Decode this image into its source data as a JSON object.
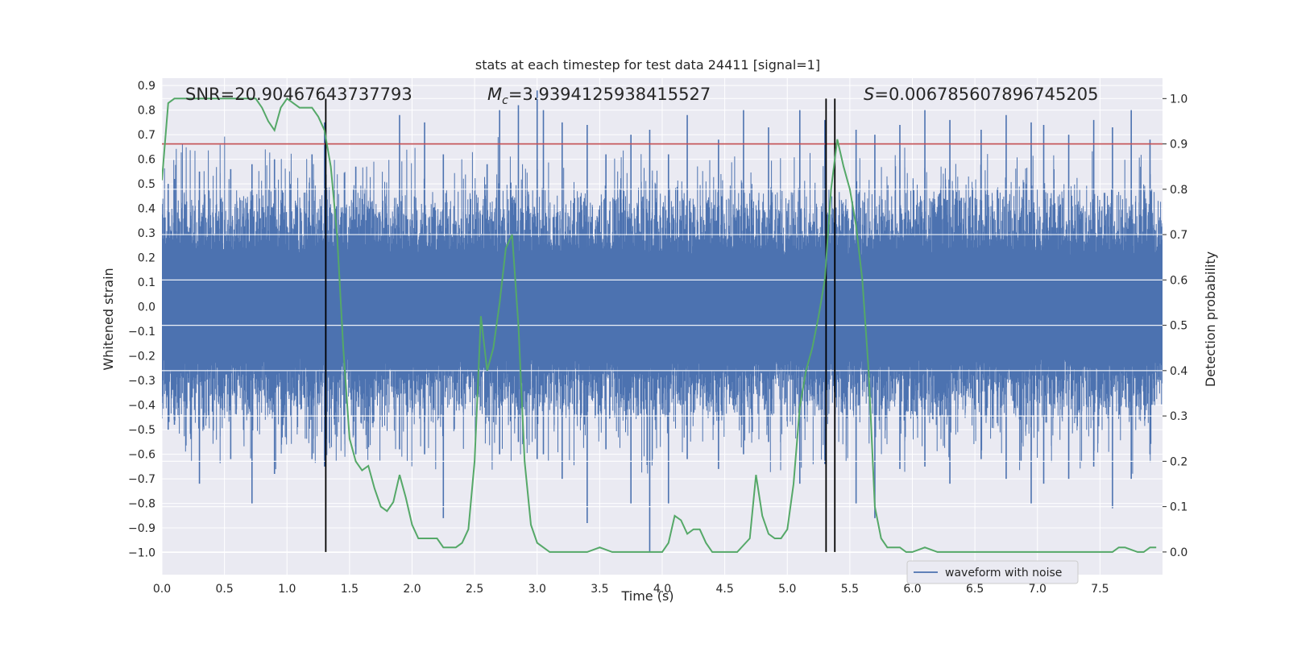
{
  "chart_data": {
    "type": "line",
    "title": "stats at each timestep for test data 24411 [signal=1]",
    "xlabel": "Time (s)",
    "ylabel_left": "Whitened strain",
    "ylabel_right": "Detection probability",
    "xlim": [
      0.0,
      8.0
    ],
    "ylim_left": [
      -1.09,
      0.93
    ],
    "ylim_right": [
      -0.05,
      1.045
    ],
    "x_ticks": [
      "0.0",
      "0.5",
      "1.0",
      "1.5",
      "2.0",
      "2.5",
      "3.0",
      "3.5",
      "4.0",
      "4.5",
      "5.0",
      "5.5",
      "6.0",
      "6.5",
      "7.0",
      "7.5"
    ],
    "y_ticks_left": [
      "0.9",
      "0.8",
      "0.7",
      "0.6",
      "0.5",
      "0.4",
      "0.3",
      "0.2",
      "0.1",
      "0.0",
      "−0.1",
      "−0.2",
      "−0.3",
      "−0.4",
      "−0.5",
      "−0.6",
      "−0.7",
      "−0.8",
      "−0.9",
      "−1.0"
    ],
    "y_ticks_right": [
      "1.0",
      "0.9",
      "0.8",
      "0.7",
      "0.6",
      "0.5",
      "0.4",
      "0.3",
      "0.2",
      "0.1",
      "0.0"
    ],
    "grid": true,
    "legend_position": "bottom-right",
    "annotations": {
      "snr": "SNR=20.90467643737793",
      "mc_symbol": "M",
      "mc_sub": "c",
      "mc_value": "=3.9394125938415527",
      "s_symbol": "S",
      "s_value": "=0.006785607896745205"
    },
    "series": [
      {
        "name": "waveform with noise",
        "axis": "left",
        "color": "#4c72b0",
        "description_only": false,
        "noise_band": 0.28,
        "spikes": [
          [
            0.05,
            0.5,
            -0.5
          ],
          [
            0.1,
            0.52,
            -0.48
          ],
          [
            0.3,
            0.55,
            -0.72
          ],
          [
            0.55,
            0.56,
            -0.62
          ],
          [
            0.72,
            0.58,
            -0.8
          ],
          [
            0.9,
            0.6,
            -0.68
          ],
          [
            1.2,
            0.62,
            -0.62
          ],
          [
            1.3,
            0.75,
            -0.65
          ],
          [
            1.55,
            0.57,
            -0.6
          ],
          [
            1.9,
            0.78,
            -0.58
          ],
          [
            2.1,
            0.75,
            -0.6
          ],
          [
            2.25,
            0.62,
            -0.86
          ],
          [
            2.6,
            0.58,
            -0.45
          ],
          [
            2.7,
            0.8,
            -0.6
          ],
          [
            2.85,
            0.82,
            -0.55
          ],
          [
            3.0,
            0.88,
            -0.62
          ],
          [
            3.05,
            0.8,
            -0.6
          ],
          [
            3.2,
            0.75,
            -0.7
          ],
          [
            3.4,
            0.74,
            -0.88
          ],
          [
            3.55,
            0.62,
            -0.58
          ],
          [
            3.75,
            0.7,
            -0.8
          ],
          [
            3.9,
            0.72,
            -1.0
          ],
          [
            4.05,
            0.62,
            -0.8
          ],
          [
            4.2,
            0.78,
            -0.62
          ],
          [
            4.45,
            0.68,
            -0.66
          ],
          [
            4.65,
            0.8,
            -0.6
          ],
          [
            4.85,
            0.73,
            -0.55
          ],
          [
            5.1,
            0.8,
            -0.72
          ],
          [
            5.3,
            0.76,
            -0.64
          ],
          [
            5.55,
            0.72,
            -0.8
          ],
          [
            5.7,
            0.7,
            -0.86
          ],
          [
            5.9,
            0.74,
            -0.66
          ],
          [
            6.1,
            0.8,
            -0.65
          ],
          [
            6.3,
            0.76,
            -0.72
          ],
          [
            6.55,
            0.72,
            -0.62
          ],
          [
            6.75,
            0.78,
            -0.7
          ],
          [
            6.95,
            0.75,
            -0.8
          ],
          [
            7.05,
            0.74,
            -0.72
          ],
          [
            7.25,
            0.7,
            -0.7
          ],
          [
            7.45,
            0.76,
            -0.65
          ],
          [
            7.6,
            0.73,
            -0.82
          ],
          [
            7.75,
            0.8,
            -0.7
          ],
          [
            7.9,
            0.68,
            -0.6
          ]
        ]
      },
      {
        "name": "",
        "axis": "right",
        "color": "#55a868",
        "x": [
          0.0,
          0.05,
          0.1,
          0.15,
          0.2,
          0.3,
          0.4,
          0.5,
          0.6,
          0.7,
          0.75,
          0.8,
          0.85,
          0.9,
          0.95,
          1.0,
          1.05,
          1.1,
          1.2,
          1.25,
          1.3,
          1.35,
          1.4,
          1.45,
          1.5,
          1.55,
          1.6,
          1.65,
          1.7,
          1.75,
          1.8,
          1.85,
          1.9,
          1.95,
          2.0,
          2.05,
          2.1,
          2.15,
          2.2,
          2.25,
          2.3,
          2.35,
          2.4,
          2.45,
          2.5,
          2.55,
          2.6,
          2.65,
          2.7,
          2.75,
          2.8,
          2.85,
          2.9,
          2.95,
          3.0,
          3.1,
          3.2,
          3.3,
          3.4,
          3.5,
          3.6,
          3.7,
          3.8,
          3.9,
          4.0,
          4.05,
          4.1,
          4.15,
          4.2,
          4.25,
          4.3,
          4.35,
          4.4,
          4.45,
          4.5,
          4.6,
          4.7,
          4.75,
          4.8,
          4.85,
          4.9,
          4.95,
          5.0,
          5.05,
          5.1,
          5.15,
          5.2,
          5.25,
          5.3,
          5.35,
          5.4,
          5.45,
          5.5,
          5.55,
          5.6,
          5.65,
          5.7,
          5.75,
          5.8,
          5.85,
          5.9,
          5.95,
          6.0,
          6.1,
          6.2,
          6.4,
          6.6,
          6.8,
          7.0,
          7.2,
          7.4,
          7.6,
          7.65,
          7.7,
          7.8,
          7.85,
          7.9,
          7.95
        ],
        "values": [
          0.82,
          0.99,
          1.0,
          1.0,
          1.0,
          1.0,
          1.0,
          1.0,
          1.0,
          1.0,
          1.0,
          0.98,
          0.95,
          0.93,
          0.98,
          1.0,
          0.99,
          0.98,
          0.98,
          0.96,
          0.93,
          0.85,
          0.7,
          0.45,
          0.25,
          0.2,
          0.18,
          0.19,
          0.14,
          0.1,
          0.09,
          0.11,
          0.17,
          0.12,
          0.06,
          0.03,
          0.03,
          0.03,
          0.03,
          0.01,
          0.01,
          0.01,
          0.02,
          0.05,
          0.2,
          0.52,
          0.4,
          0.45,
          0.55,
          0.67,
          0.7,
          0.5,
          0.2,
          0.06,
          0.02,
          0.0,
          0.0,
          0.0,
          0.0,
          0.01,
          0.0,
          0.0,
          0.0,
          0.0,
          0.0,
          0.02,
          0.08,
          0.07,
          0.04,
          0.05,
          0.05,
          0.02,
          0.0,
          0.0,
          0.0,
          0.0,
          0.03,
          0.17,
          0.08,
          0.04,
          0.03,
          0.03,
          0.05,
          0.15,
          0.32,
          0.4,
          0.45,
          0.52,
          0.6,
          0.8,
          0.91,
          0.85,
          0.8,
          0.72,
          0.6,
          0.4,
          0.1,
          0.03,
          0.01,
          0.01,
          0.01,
          0.0,
          0.0,
          0.01,
          0.0,
          0.0,
          0.0,
          0.0,
          0.0,
          0.0,
          0.0,
          0.0,
          0.01,
          0.01,
          0.0,
          0.0,
          0.01,
          0.01
        ]
      }
    ],
    "threshold": {
      "axis": "right",
      "value": 0.9,
      "color": "#c44e52"
    },
    "vlines": [
      1.31,
      5.31,
      5.38
    ],
    "legend": {
      "label": "waveform with noise"
    }
  }
}
